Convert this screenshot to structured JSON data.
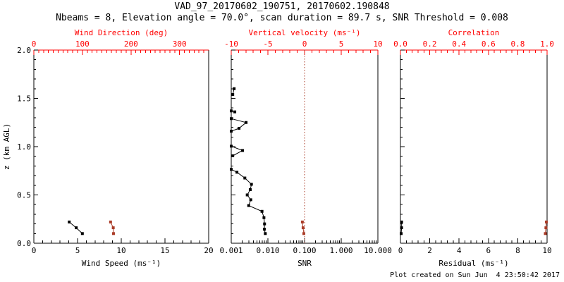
{
  "title": "VAD_97_20170602_190751, 20170602.190848",
  "subtitle": "Nbeams = 8, Elevation angle = 70.0°, scan duration = 89.7 s, SNR Threshold = 0.008",
  "footer": "Plot created on Sun Jun  4 23:50:42 2017",
  "colors": {
    "axis_red": "#ff0000",
    "data_red": "#aa3c28",
    "black": "#000000",
    "background": "#ffffff"
  },
  "y_axis": {
    "label": "z (km AGL)",
    "min": 0,
    "max": 2,
    "tick_values": [
      0,
      0.5,
      1.0,
      1.5,
      2.0
    ],
    "tick_labels": [
      "0.0",
      "0.5",
      "1.0",
      "1.5",
      "2.0"
    ],
    "minor_step": 0.1
  },
  "chart_data": [
    {
      "type": "scatter",
      "panel": "wind",
      "bottom_axis": {
        "label": "Wind Speed (ms⁻¹)",
        "min": 0,
        "max": 20,
        "log": false,
        "tick_values": [
          0,
          5,
          10,
          15,
          20
        ],
        "tick_labels": [
          "0",
          "5",
          "10",
          "15",
          "20"
        ],
        "minor_step": 1
      },
      "top_axis": {
        "label": "Wind Direction (deg)",
        "min": 0,
        "max": 360,
        "log": false,
        "tick_values": [
          0,
          100,
          200,
          300
        ],
        "tick_labels": [
          "0",
          "100",
          "200",
          "300"
        ],
        "minor_step": 10
      },
      "series": [
        {
          "name": "wind-speed",
          "axis": "bottom",
          "color": "black",
          "points": [
            [
              4.05,
              0.22
            ],
            [
              4.85,
              0.16
            ],
            [
              5.55,
              0.1
            ]
          ]
        },
        {
          "name": "wind-direction",
          "axis": "top",
          "color": "red",
          "points": [
            [
              158,
              0.22
            ],
            [
              163.5,
              0.16
            ],
            [
              164,
              0.1
            ]
          ]
        }
      ]
    },
    {
      "type": "scatter",
      "panel": "snr",
      "bottom_axis": {
        "label": "SNR",
        "min": 0.001,
        "max": 10,
        "log": true,
        "tick_values": [
          0.001,
          0.01,
          0.1,
          1,
          10
        ],
        "tick_labels": [
          "0.001",
          "0.010",
          "0.100",
          "1.000",
          "10.000"
        ]
      },
      "top_axis": {
        "label": "Vertical velocity (ms⁻¹)",
        "min": -10,
        "max": 10,
        "log": false,
        "tick_values": [
          -10,
          -5,
          0,
          5,
          10
        ],
        "tick_labels": [
          "-10",
          "-5",
          "0",
          "5",
          "10"
        ],
        "minor_step": 1
      },
      "refline": {
        "axis": "top",
        "value": 0,
        "style": "dotted",
        "color": "red"
      },
      "series": [
        {
          "name": "snr-profile",
          "axis": "bottom",
          "color": "black",
          "segments": [
            [
              [
                0.0012,
                1.6
              ],
              [
                0.0011,
                1.54
              ]
            ],
            [
              [
                0.001,
                1.37
              ],
              [
                0.00125,
                1.36
              ]
            ],
            [
              [
                0.001,
                1.29
              ],
              [
                0.00254,
                1.25
              ],
              [
                0.00163,
                1.19
              ],
              [
                0.001,
                1.16
              ]
            ],
            [
              [
                0.001,
                1.005
              ],
              [
                0.00203,
                0.96
              ],
              [
                0.0011,
                0.905
              ]
            ],
            [
              [
                0.001,
                0.765
              ],
              [
                0.00143,
                0.735
              ],
              [
                0.00235,
                0.675
              ],
              [
                0.00356,
                0.61
              ],
              [
                0.0033,
                0.555
              ],
              [
                0.00273,
                0.5
              ],
              [
                0.00341,
                0.45
              ],
              [
                0.00299,
                0.39
              ],
              [
                0.0069,
                0.33
              ],
              [
                0.0078,
                0.265
              ],
              [
                0.0081,
                0.2
              ],
              [
                0.008,
                0.145
              ],
              [
                0.0085,
                0.1
              ]
            ]
          ]
        },
        {
          "name": "vertical-velocity",
          "axis": "top",
          "color": "red",
          "points": [
            [
              -0.3,
              0.22
            ],
            [
              -0.2,
              0.16
            ],
            [
              -0.1,
              0.1
            ]
          ]
        }
      ]
    },
    {
      "type": "scatter",
      "panel": "residual",
      "bottom_axis": {
        "label": "Residual (ms⁻¹)",
        "min": 0,
        "max": 10,
        "log": false,
        "tick_values": [
          0,
          2,
          4,
          6,
          8,
          10
        ],
        "tick_labels": [
          "0",
          "2",
          "4",
          "6",
          "8",
          "10"
        ],
        "minor_step": 0.4
      },
      "top_axis": {
        "label": "Correlation",
        "min": 0,
        "max": 1,
        "log": false,
        "tick_values": [
          0,
          0.2,
          0.4,
          0.6,
          0.8,
          1.0
        ],
        "tick_labels": [
          "0.0",
          "0.2",
          "0.4",
          "0.6",
          "0.8",
          "1.0"
        ],
        "minor_step": 0.04
      },
      "series": [
        {
          "name": "residual",
          "axis": "bottom",
          "color": "black",
          "points": [
            [
              0.08,
              0.22
            ],
            [
              0.08,
              0.16
            ],
            [
              0.05,
              0.1
            ]
          ]
        },
        {
          "name": "correlation",
          "axis": "top",
          "color": "red",
          "points": [
            [
              0.995,
              0.22
            ],
            [
              0.992,
              0.16
            ],
            [
              0.988,
              0.1
            ]
          ]
        }
      ]
    }
  ]
}
